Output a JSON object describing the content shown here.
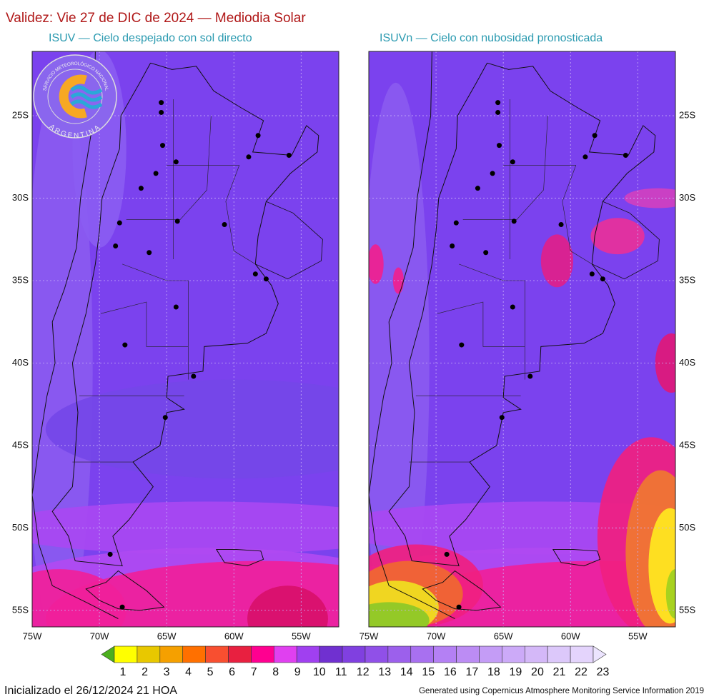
{
  "header": {
    "title": "Validez: Vie 27 de DIC de 2024 — Mediodia Solar"
  },
  "panels": [
    {
      "subtitle": "ISUV — Cielo despejado con sol directo"
    },
    {
      "subtitle": "ISUVn — Cielo con nubosidad pronosticada"
    }
  ],
  "map": {
    "lat_range": [
      -21.1,
      -56
    ],
    "lon_range": [
      -75,
      -52.2
    ],
    "lat_ticks": [
      {
        "value": -25,
        "label": "25S"
      },
      {
        "value": -30,
        "label": "30S"
      },
      {
        "value": -35,
        "label": "35S"
      },
      {
        "value": -40,
        "label": "40S"
      },
      {
        "value": -45,
        "label": "45S"
      },
      {
        "value": -50,
        "label": "50S"
      },
      {
        "value": -55,
        "label": "55S"
      }
    ],
    "lon_ticks": [
      {
        "value": -75,
        "label": "75W"
      },
      {
        "value": -70,
        "label": "70W"
      },
      {
        "value": -65,
        "label": "65W"
      },
      {
        "value": -60,
        "label": "60W"
      },
      {
        "value": -55,
        "label": "55W"
      }
    ]
  },
  "logo": {
    "top_text": "SERVICIO METEOROLÓGICO NACIONAL",
    "bottom_text": "ARGENTINA"
  },
  "colorbar": {
    "levels": [
      1,
      2,
      3,
      4,
      5,
      6,
      7,
      8,
      9,
      10,
      11,
      12,
      13,
      14,
      15,
      16,
      17,
      18,
      19,
      20,
      21,
      22,
      23
    ],
    "colors": [
      "#4caf1e",
      "#ffff00",
      "#e8c800",
      "#f5a000",
      "#ff7000",
      "#f84f30",
      "#e82040",
      "#ff0090",
      "#e040f0",
      "#a040f0",
      "#7030d0",
      "#8040e0",
      "#9050e8",
      "#9c60ec",
      "#a870f0",
      "#b480f4",
      "#bc8cf4",
      "#c49cf6",
      "#ccaaf8",
      "#d4b8f8",
      "#dcc8fa",
      "#e4d4fc",
      "#ece4fe"
    ]
  },
  "footer": {
    "init": "Inicializado el 26/12/2024 21 HOA",
    "credit": "Generated using Copernicus Atmosphere Monitoring Service Information 2019"
  }
}
